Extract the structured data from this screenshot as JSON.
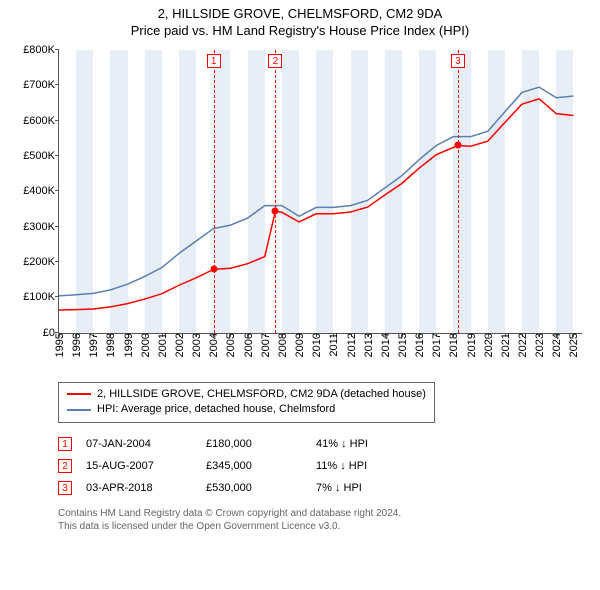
{
  "header": {
    "title_line1": "2, HILLSIDE GROVE, CHELMSFORD, CM2 9DA",
    "title_line2": "Price paid vs. HM Land Registry's House Price Index (HPI)"
  },
  "chart": {
    "type": "line",
    "background_color": "#ffffff",
    "shade_color": "#e8eef7",
    "axis_color": "#555555",
    "ylim": [
      0,
      800000
    ],
    "ytick_step": 100000,
    "yticks": [
      "£0",
      "£100K",
      "£200K",
      "£300K",
      "£400K",
      "£500K",
      "£600K",
      "£700K",
      "£800K"
    ],
    "xlim": [
      1995,
      2025.5
    ],
    "xticks": [
      1995,
      1996,
      1997,
      1998,
      1999,
      2000,
      2001,
      2002,
      2003,
      2004,
      2005,
      2006,
      2007,
      2008,
      2009,
      2010,
      2011,
      2012,
      2013,
      2014,
      2015,
      2016,
      2017,
      2018,
      2019,
      2020,
      2021,
      2022,
      2023,
      2024,
      2025
    ],
    "shaded_years": [
      1996,
      1998,
      2000,
      2002,
      2004,
      2006,
      2008,
      2010,
      2012,
      2014,
      2016,
      2018,
      2020,
      2022,
      2024
    ],
    "marker_line_color": "#ff0000",
    "marker_dash": "4 3",
    "series": {
      "hpi": {
        "label": "HPI: Average price, detached house, Chelmsford",
        "color": "#5b7fb2",
        "line_width": 1.5,
        "points": [
          [
            1995,
            105000
          ],
          [
            1996,
            108000
          ],
          [
            1997,
            112000
          ],
          [
            1998,
            122000
          ],
          [
            1999,
            138000
          ],
          [
            2000,
            160000
          ],
          [
            2001,
            185000
          ],
          [
            2002,
            225000
          ],
          [
            2003,
            260000
          ],
          [
            2004,
            295000
          ],
          [
            2005,
            305000
          ],
          [
            2006,
            325000
          ],
          [
            2007,
            360000
          ],
          [
            2008,
            360000
          ],
          [
            2009,
            330000
          ],
          [
            2010,
            355000
          ],
          [
            2011,
            355000
          ],
          [
            2012,
            360000
          ],
          [
            2013,
            375000
          ],
          [
            2014,
            410000
          ],
          [
            2015,
            445000
          ],
          [
            2016,
            490000
          ],
          [
            2017,
            530000
          ],
          [
            2018,
            555000
          ],
          [
            2019,
            555000
          ],
          [
            2020,
            570000
          ],
          [
            2021,
            625000
          ],
          [
            2022,
            680000
          ],
          [
            2023,
            695000
          ],
          [
            2024,
            665000
          ],
          [
            2025,
            670000
          ]
        ]
      },
      "property": {
        "label": "2, HILLSIDE GROVE, CHELMSFORD, CM2 9DA (detached house)",
        "color": "#ff0000",
        "line_width": 1.5,
        "points": [
          [
            1995,
            65000
          ],
          [
            1996,
            66000
          ],
          [
            1997,
            68000
          ],
          [
            1998,
            74000
          ],
          [
            1999,
            83000
          ],
          [
            2000,
            96000
          ],
          [
            2001,
            111000
          ],
          [
            2002,
            135000
          ],
          [
            2003,
            156000
          ],
          [
            2004.02,
            180000
          ],
          [
            2005,
            183000
          ],
          [
            2006,
            196000
          ],
          [
            2007,
            216000
          ],
          [
            2007.62,
            345000
          ],
          [
            2008,
            341000
          ],
          [
            2009,
            314000
          ],
          [
            2010,
            337000
          ],
          [
            2011,
            337000
          ],
          [
            2012,
            342000
          ],
          [
            2013,
            356000
          ],
          [
            2014,
            390000
          ],
          [
            2015,
            423000
          ],
          [
            2016,
            466000
          ],
          [
            2017,
            504000
          ],
          [
            2018.26,
            530000
          ],
          [
            2019,
            528000
          ],
          [
            2020,
            542000
          ],
          [
            2021,
            595000
          ],
          [
            2022,
            647000
          ],
          [
            2023,
            662000
          ],
          [
            2024,
            620000
          ],
          [
            2025,
            615000
          ]
        ]
      }
    },
    "sale_markers": [
      {
        "idx": "1",
        "x": 2004.02,
        "y": 180000
      },
      {
        "idx": "2",
        "x": 2007.62,
        "y": 345000
      },
      {
        "idx": "3",
        "x": 2018.26,
        "y": 530000
      }
    ]
  },
  "legend": {
    "rows": [
      {
        "color": "#ff0000",
        "label_path": "chart.series.property.label"
      },
      {
        "color": "#5b7fb2",
        "label_path": "chart.series.hpi.label"
      }
    ]
  },
  "sales_table": {
    "rows": [
      {
        "idx": "1",
        "date": "07-JAN-2004",
        "price": "£180,000",
        "delta": "41% ↓ HPI"
      },
      {
        "idx": "2",
        "date": "15-AUG-2007",
        "price": "£345,000",
        "delta": "11% ↓ HPI"
      },
      {
        "idx": "3",
        "date": "03-APR-2018",
        "price": "£530,000",
        "delta": "7% ↓ HPI"
      }
    ]
  },
  "attribution": {
    "line1": "Contains HM Land Registry data © Crown copyright and database right 2024.",
    "line2": "This data is licensed under the Open Government Licence v3.0."
  }
}
